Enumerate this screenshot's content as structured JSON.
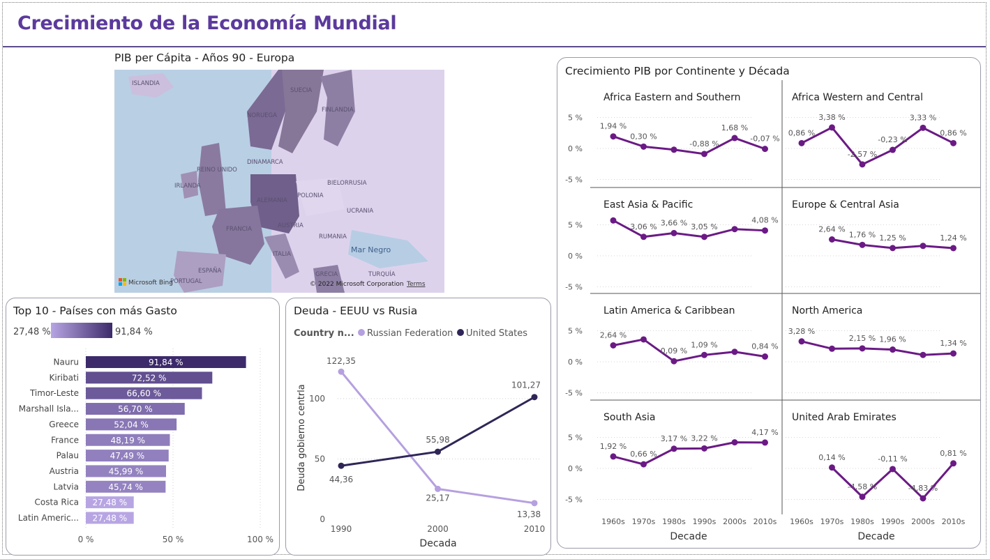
{
  "page_title": "Crecimiento de la Economía Mundial",
  "map": {
    "title": "PIB per Cápita - Años 90 - Europa",
    "labels": [
      "ISLANDIA",
      "SUECIA",
      "NORUEGA",
      "FINLANDIA",
      "REINO UNIDO",
      "DINAMARCA",
      "IRLANDA",
      "ALEMANIA",
      "BIELORRUSIA",
      "POLONIA",
      "UCRANIA",
      "FRANCIA",
      "AUSTRIA",
      "RUMANIA",
      "ITALIA",
      "Mar Negro",
      "ESPAÑA",
      "PORTUGAL",
      "GRECIA",
      "TURQUÍA"
    ],
    "brand": "Microsoft Bing",
    "copyright": "© 2022 Microsoft Corporation",
    "terms": "Terms"
  },
  "top10": {
    "title": "Top 10 - Países con más Gasto",
    "legend_min": "27,48 %",
    "legend_max": "91,84 %",
    "axis_ticks": [
      "0 %",
      "50 %",
      "100 %"
    ]
  },
  "debt": {
    "title": "Deuda - EEUU vs Rusia",
    "legend_title": "Country n...",
    "legend_items": [
      "Russian Federation",
      "United States"
    ],
    "ylabel": "Deuda gobierno centrla",
    "xlabel": "Decada"
  },
  "growth": {
    "title": "Crecimiento PIB por Continente y Década",
    "xlabel": "Decade",
    "y_ticks": [
      "5 %",
      "0 %",
      "-5 %"
    ]
  },
  "chart_data": [
    {
      "type": "bar",
      "orientation": "horizontal",
      "title": "Top 10 - Países con más Gasto",
      "categories": [
        "Nauru",
        "Kiribati",
        "Timor-Leste",
        "Marshall Isla...",
        "Greece",
        "France",
        "Palau",
        "Austria",
        "Latvia",
        "Costa Rica",
        "Latin Americ..."
      ],
      "values": [
        91.84,
        72.52,
        66.6,
        56.7,
        52.04,
        48.19,
        47.49,
        45.99,
        45.74,
        27.48,
        27.48
      ],
      "value_labels": [
        "91,84 %",
        "72,52 %",
        "66,60 %",
        "56,70 %",
        "52,04 %",
        "48,19 %",
        "47,49 %",
        "45,99 %",
        "45,74 %",
        "27,48 %",
        "27,48 %"
      ],
      "xlim": [
        0,
        100
      ],
      "color_scale": [
        "#b7a5e3",
        "#3c2a6b"
      ]
    },
    {
      "type": "line",
      "title": "Deuda - EEUU vs Rusia",
      "x": [
        1990,
        2000,
        2010
      ],
      "series": [
        {
          "name": "Russian Federation",
          "values": [
            122.35,
            25.17,
            13.38
          ],
          "labels": [
            "122,35",
            "25,17",
            "13,38"
          ],
          "color": "#b5a0e0"
        },
        {
          "name": "United States",
          "values": [
            44.36,
            55.98,
            101.27
          ],
          "labels": [
            "44,36",
            "55,98",
            "101,27"
          ],
          "color": "#2f2657"
        }
      ],
      "ylim": [
        0,
        130
      ],
      "yticks": [
        0,
        50,
        100
      ],
      "xlabel": "Decada",
      "ylabel": "Deuda gobierno centrla"
    },
    {
      "type": "line",
      "title": "Crecimiento PIB por Continente y Década",
      "categories": [
        "1960s",
        "1970s",
        "1980s",
        "1990s",
        "2000s",
        "2010s"
      ],
      "ylim": [
        -5,
        5
      ],
      "xlabel": "Decade",
      "color": "#6b1a85",
      "panels": [
        {
          "name": "Africa Eastern and Southern",
          "values": [
            1.94,
            0.3,
            -0.2,
            -0.88,
            1.68,
            -0.07
          ],
          "labels": [
            "1,94 %",
            "0,30 %",
            "",
            "-0,88 %",
            "1,68 %",
            "-0,07 %"
          ]
        },
        {
          "name": "Africa Western and Central",
          "values": [
            0.86,
            3.38,
            -2.57,
            -0.23,
            3.33,
            0.86
          ],
          "labels": [
            "0,86 %",
            "3,38 %",
            "-2,57 %",
            "-0,23 %",
            "3,33 %",
            "0,86 %"
          ]
        },
        {
          "name": "East Asia & Pacific",
          "values": [
            5.7,
            3.06,
            3.66,
            3.05,
            4.3,
            4.08
          ],
          "labels": [
            "",
            "3,06 %",
            "3,66 %",
            "3,05 %",
            "",
            "4,08 %"
          ]
        },
        {
          "name": "Europe & Central Asia",
          "values": [
            null,
            2.64,
            1.76,
            1.25,
            1.6,
            1.24
          ],
          "labels": [
            "",
            "2,64 %",
            "1,76 %",
            "1,25 %",
            "",
            "1,24 %"
          ]
        },
        {
          "name": "Latin America & Caribbean",
          "values": [
            2.64,
            3.6,
            0.09,
            1.09,
            1.6,
            0.84
          ],
          "labels": [
            "2,64 %",
            "",
            "0,09 %",
            "1,09 %",
            "",
            "0,84 %"
          ]
        },
        {
          "name": "North America",
          "values": [
            3.28,
            2.1,
            2.15,
            1.96,
            1.1,
            1.34
          ],
          "labels": [
            "3,28 %",
            "",
            "2,15 %",
            "1,96 %",
            "",
            "1,34 %"
          ]
        },
        {
          "name": "South Asia",
          "values": [
            1.92,
            0.66,
            3.17,
            3.22,
            4.2,
            4.17
          ],
          "labels": [
            "1,92 %",
            "0,66 %",
            "3,17 %",
            "3,22 %",
            "",
            "4,17 %"
          ]
        },
        {
          "name": "United Arab Emirates",
          "values": [
            null,
            0.14,
            -4.58,
            -0.11,
            -4.83,
            0.81
          ],
          "labels": [
            "",
            "0,14 %",
            "-4,58 %",
            "-0,11 %",
            "-4,83 %",
            "0,81 %"
          ]
        }
      ]
    }
  ]
}
